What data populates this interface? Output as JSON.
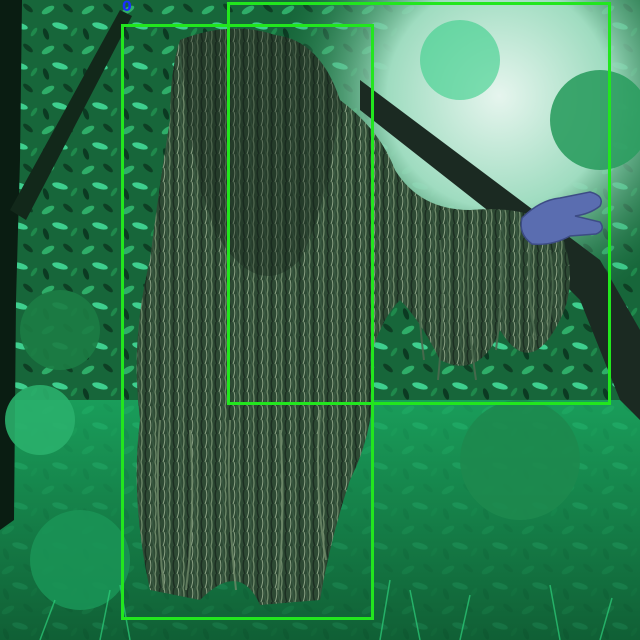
{
  "image": {
    "description_kind": "photo",
    "corner_mark": "0"
  },
  "boxes": [
    {
      "name": "bbox-full-body",
      "color": "#22e61e"
    },
    {
      "name": "bbox-upper-body-arm",
      "color": "#22e61e"
    }
  ],
  "colors": {
    "box_green": "#22e61e",
    "foliage_dark": "#0e3b22",
    "foliage_mid": "#1f7a3e",
    "foliage_light": "#3fcf8c",
    "sky_light": "#cfe9e0",
    "glove": "#5a6db0"
  }
}
